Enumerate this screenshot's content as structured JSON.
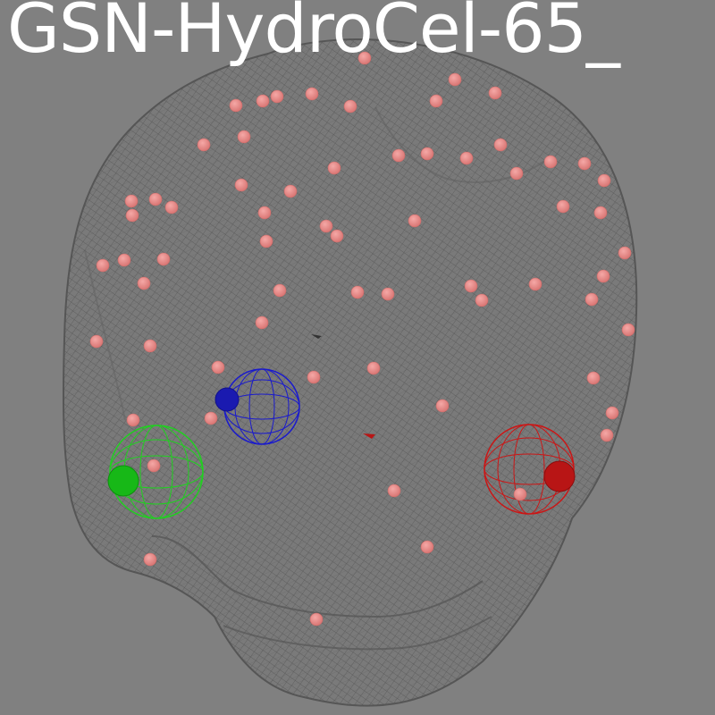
{
  "title": "GSN-HydroCel-65_",
  "colors": {
    "background": "#808080",
    "head_mesh": "#5a5a5a",
    "electrode": "#e88a88",
    "fiducial_left": "#1fd11f",
    "fiducial_nasion": "#1a1acc",
    "fiducial_right": "#cc1515",
    "title_text": "#ffffff"
  },
  "fiducials": [
    {
      "name": "left",
      "color": "#1fd11f"
    },
    {
      "name": "nasion",
      "color": "#1a1acc"
    },
    {
      "name": "right",
      "color": "#cc1515"
    }
  ],
  "electrode_count": 64
}
